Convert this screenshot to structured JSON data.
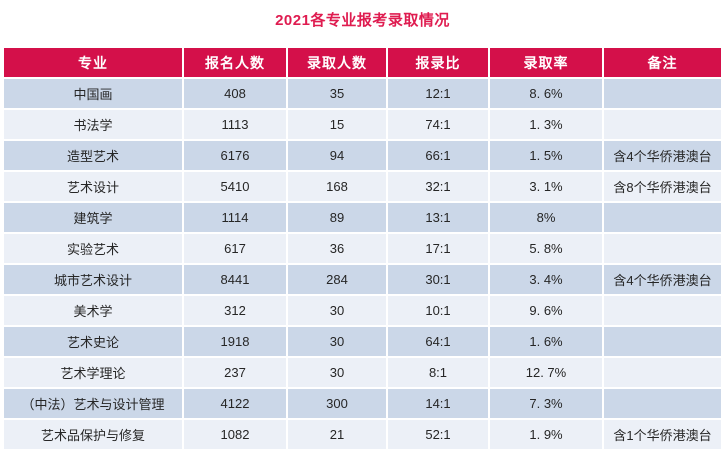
{
  "title": "2021各专业报考录取情况",
  "colors": {
    "title_text": "#DF1C50",
    "header_bg": "#D4104A",
    "header_text": "#FFFFFF",
    "row_odd_bg": "#CBD7E8",
    "row_even_bg": "#ECF0F7",
    "cell_text": "#262626",
    "page_bg": "#FFFFFF"
  },
  "table": {
    "headers": [
      "专业",
      "报名人数",
      "录取人数",
      "报录比",
      "录取率",
      "备注"
    ],
    "rows": [
      [
        "中国画",
        "408",
        "35",
        "12:1",
        "8. 6%",
        ""
      ],
      [
        "书法学",
        "1113",
        "15",
        "74:1",
        "1. 3%",
        ""
      ],
      [
        "造型艺术",
        "6176",
        "94",
        "66:1",
        "1. 5%",
        "含4个华侨港澳台"
      ],
      [
        "艺术设计",
        "5410",
        "168",
        "32:1",
        "3. 1%",
        "含8个华侨港澳台"
      ],
      [
        "建筑学",
        "1114",
        "89",
        "13:1",
        "8%",
        ""
      ],
      [
        "实验艺术",
        "617",
        "36",
        "17:1",
        "5. 8%",
        ""
      ],
      [
        "城市艺术设计",
        "8441",
        "284",
        "30:1",
        "3. 4%",
        "含4个华侨港澳台"
      ],
      [
        "美术学",
        "312",
        "30",
        "10:1",
        "9. 6%",
        ""
      ],
      [
        "艺术史论",
        "1918",
        "30",
        "64:1",
        "1. 6%",
        ""
      ],
      [
        "艺术学理论",
        "237",
        "30",
        "8:1",
        "12. 7%",
        ""
      ],
      [
        "（中法）艺术与设计管理",
        "4122",
        "300",
        "14:1",
        "7. 3%",
        ""
      ],
      [
        "艺术品保护与修复",
        "1082",
        "21",
        "52:1",
        "1. 9%",
        "含1个华侨港澳台"
      ]
    ]
  }
}
